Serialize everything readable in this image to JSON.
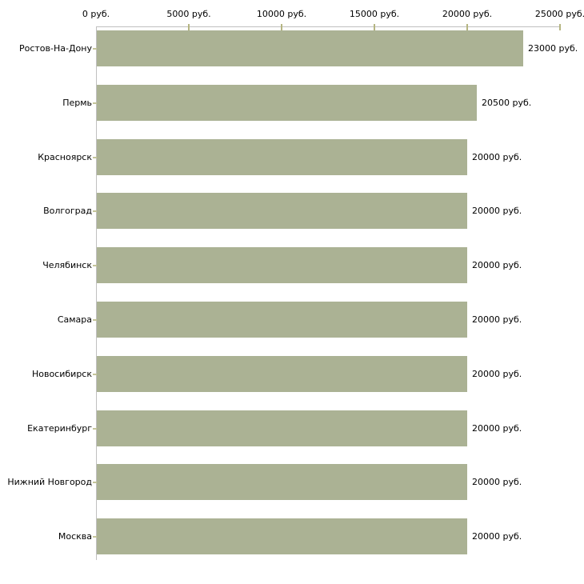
{
  "chart_data": {
    "type": "bar",
    "orientation": "horizontal",
    "title": "",
    "xlabel": "",
    "ylabel": "",
    "xlim": [
      0,
      25000
    ],
    "grid": false,
    "legend": false,
    "axis_position": "top",
    "categories": [
      "Ростов-На-Дону",
      "Пермь",
      "Красноярск",
      "Волгоград",
      "Челябинск",
      "Самара",
      "Новосибирск",
      "Екатеринбург",
      "Нижний Новгород",
      "Москва"
    ],
    "values": [
      23000,
      20500,
      20000,
      20000,
      20000,
      20000,
      20000,
      20000,
      20000,
      20000
    ],
    "value_labels": [
      "23000 руб.",
      "20500 руб.",
      "20000 руб.",
      "20000 руб.",
      "20000 руб.",
      "20000 руб.",
      "20000 руб.",
      "20000 руб.",
      "20000 руб.",
      "20000 руб."
    ],
    "x_ticks": [
      0,
      5000,
      10000,
      15000,
      20000,
      25000
    ],
    "x_tick_labels": [
      "0 руб.",
      "5000 руб.",
      "10000 руб.",
      "15000 руб.",
      "20000 руб.",
      "25000 руб."
    ],
    "colors": {
      "bar": "#abb294",
      "axis_line": "#c0c0c0",
      "tick_mark": "#b5b581",
      "category_dash": "#c4c49a",
      "text": "#000000",
      "background": "#ffffff"
    }
  }
}
